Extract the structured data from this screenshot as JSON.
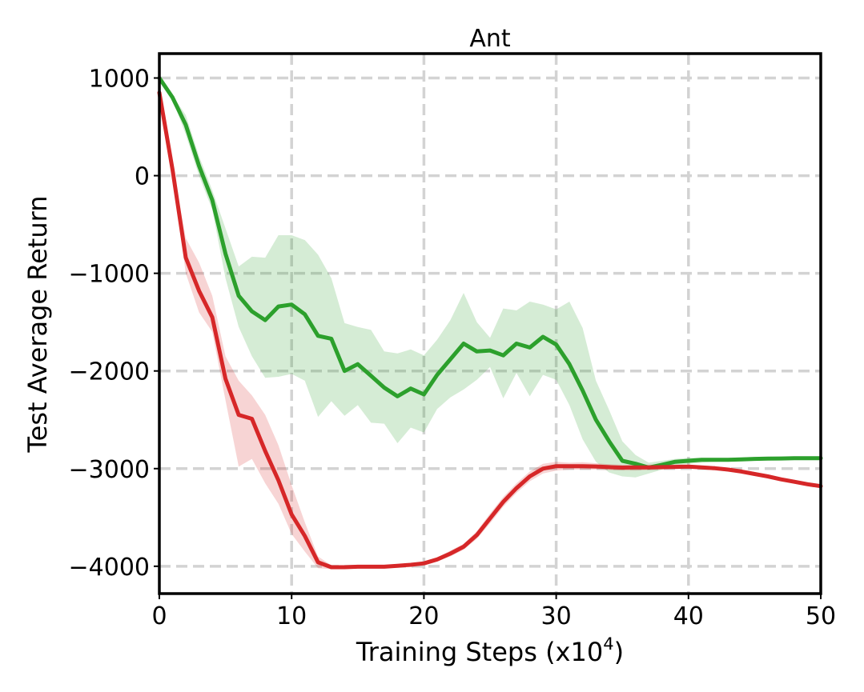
{
  "chart_data": {
    "type": "line",
    "title": "Ant",
    "xlabel": "Training Steps (x10",
    "xlabel_sup": "4",
    "xlabel_suffix": ")",
    "ylabel": "Test Average Return",
    "xlim": [
      0,
      50
    ],
    "ylim": [
      -4280,
      1250
    ],
    "xticks": [
      0,
      10,
      20,
      30,
      40,
      50
    ],
    "yticks": [
      1000,
      0,
      -1000,
      -2000,
      -3000,
      -4000
    ],
    "ytick_labels": [
      "1000",
      "0",
      "−1000",
      "−2000",
      "−3000",
      "−4000"
    ],
    "grid": true,
    "x": [
      0,
      1,
      2,
      3,
      4,
      5,
      6,
      7,
      8,
      9,
      10,
      11,
      12,
      13,
      14,
      15,
      16,
      17,
      18,
      19,
      20,
      21,
      22,
      23,
      24,
      25,
      26,
      27,
      28,
      29,
      30,
      31,
      32,
      33,
      34,
      35,
      36,
      37,
      38,
      39,
      40,
      41,
      42,
      43,
      44,
      45,
      46,
      47,
      48,
      49,
      50
    ],
    "series": [
      {
        "color": "#2ca02c",
        "values": [
          1000,
          800,
          520,
          100,
          -250,
          -800,
          -1230,
          -1390,
          -1480,
          -1340,
          -1320,
          -1420,
          -1640,
          -1670,
          -2000,
          -1930,
          -2050,
          -2170,
          -2260,
          -2180,
          -2240,
          -2040,
          -1880,
          -1720,
          -1800,
          -1790,
          -1840,
          -1720,
          -1760,
          -1650,
          -1730,
          -1930,
          -2200,
          -2500,
          -2720,
          -2920,
          -2950,
          -2990,
          -2960,
          -2930,
          -2920,
          -2910,
          -2910,
          -2910,
          -2905,
          -2900,
          -2898,
          -2896,
          -2894,
          -2893,
          -2893
        ],
        "lower": [
          1000,
          780,
          420,
          0,
          -350,
          -1050,
          -1550,
          -1850,
          -2070,
          -2060,
          -2030,
          -2100,
          -2470,
          -2310,
          -2460,
          -2350,
          -2530,
          -2540,
          -2740,
          -2580,
          -2630,
          -2390,
          -2270,
          -2190,
          -2090,
          -1960,
          -2280,
          -2020,
          -2260,
          -2040,
          -2090,
          -2350,
          -2700,
          -2930,
          -3040,
          -3080,
          -3090,
          -3050,
          -3010,
          -2970,
          -2950,
          -2940,
          -2930,
          -2925,
          -2920,
          -2915,
          -2912,
          -2910,
          -2908,
          -2906,
          -2905
        ],
        "upper": [
          1000,
          820,
          620,
          200,
          -150,
          -540,
          -930,
          -830,
          -840,
          -610,
          -610,
          -660,
          -810,
          -1050,
          -1510,
          -1550,
          -1580,
          -1800,
          -1820,
          -1780,
          -1840,
          -1680,
          -1480,
          -1200,
          -1500,
          -1660,
          -1360,
          -1380,
          -1290,
          -1320,
          -1370,
          -1290,
          -1560,
          -2100,
          -2400,
          -2720,
          -2860,
          -2940,
          -2920,
          -2900,
          -2890,
          -2890,
          -2890,
          -2890,
          -2885,
          -2882,
          -2880,
          -2878,
          -2876,
          -2875,
          -2875
        ]
      },
      {
        "color": "#d62728",
        "values": [
          850,
          60,
          -840,
          -1180,
          -1450,
          -2080,
          -2450,
          -2490,
          -2820,
          -3120,
          -3470,
          -3690,
          -3960,
          -4010,
          -4010,
          -4005,
          -4005,
          -4005,
          -3995,
          -3985,
          -3970,
          -3930,
          -3870,
          -3800,
          -3680,
          -3510,
          -3340,
          -3200,
          -3080,
          -3000,
          -2975,
          -2975,
          -2975,
          -2978,
          -2985,
          -2990,
          -2988,
          -2988,
          -2985,
          -2982,
          -2980,
          -2988,
          -2996,
          -3010,
          -3030,
          -3055,
          -3080,
          -3110,
          -3135,
          -3160,
          -3180
        ],
        "lower": [
          850,
          0,
          -1000,
          -1400,
          -1600,
          -2300,
          -2980,
          -2900,
          -3150,
          -3360,
          -3670,
          -3850,
          -4020,
          -4030,
          -4025,
          -4020,
          -4020,
          -4020,
          -4010,
          -4000,
          -3990,
          -3950,
          -3900,
          -3830,
          -3720,
          -3560,
          -3390,
          -3250,
          -3130,
          -3050,
          -3020,
          -3010,
          -3010,
          -3010,
          -3015,
          -3020,
          -3020,
          -3015,
          -3010,
          -3005,
          -3000,
          -3008,
          -3016,
          -3030,
          -3050,
          -3075,
          -3100,
          -3130,
          -3155,
          -3180,
          -3200
        ],
        "upper": [
          850,
          100,
          -640,
          -890,
          -1230,
          -1850,
          -2100,
          -2250,
          -2450,
          -2760,
          -3170,
          -3550,
          -3900,
          -3990,
          -3995,
          -3990,
          -3990,
          -3990,
          -3980,
          -3970,
          -3950,
          -3910,
          -3840,
          -3770,
          -3640,
          -3460,
          -3290,
          -3150,
          -3030,
          -2950,
          -2930,
          -2940,
          -2935,
          -2945,
          -2955,
          -2960,
          -2960,
          -2960,
          -2960,
          -2958,
          -2960,
          -2968,
          -2976,
          -2990,
          -3010,
          -3035,
          -3060,
          -3090,
          -3115,
          -3140,
          -3160
        ]
      }
    ]
  }
}
